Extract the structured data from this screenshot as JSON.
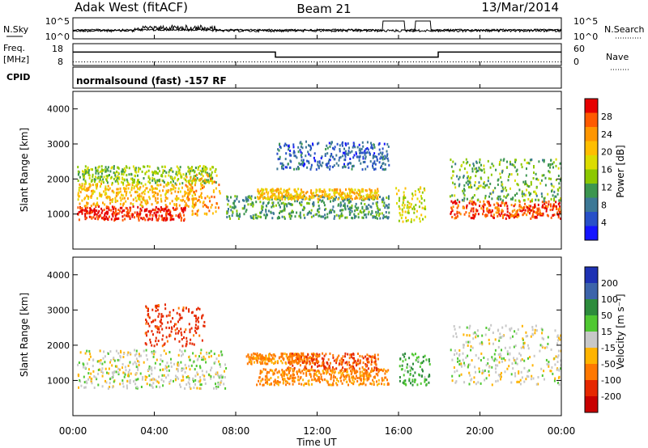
{
  "header": {
    "station": "Adak West (fitACF)",
    "beam": "Beam 21",
    "date": "13/Mar/2014"
  },
  "noise_panel": {
    "left_label": "N.Sky",
    "right_label": "N.Search",
    "ticks_left": [
      "10^5",
      "10^0"
    ],
    "ticks_right": [
      "10^5",
      "10^0"
    ]
  },
  "freq_panel": {
    "left_label_top": "Freq.",
    "left_label_unit": "[MHz]",
    "right_label": "Nave",
    "ticks_left": [
      "18",
      "8"
    ],
    "ticks_right": [
      "60",
      "0"
    ],
    "freq_levels": [
      {
        "start_hour": 0,
        "end_hour": 9.95,
        "value": 13
      },
      {
        "start_hour": 9.95,
        "end_hour": 17.95,
        "value": 10
      },
      {
        "start_hour": 17.95,
        "end_hour": 24,
        "value": 13
      }
    ],
    "nave_level": 10
  },
  "cpid_panel": {
    "label": "CPID",
    "text": "normalsound (fast) -157 RF"
  },
  "power_panel": {
    "ylabel": "Slant Range [km]",
    "yticks": [
      "1000",
      "2000",
      "3000",
      "4000"
    ],
    "colorbar_label": "Power [dB]",
    "colorbar_ticks": [
      "28",
      "24",
      "20",
      "16",
      "12",
      "8",
      "4"
    ],
    "colors": [
      "#e60000",
      "#ff5a00",
      "#ff9600",
      "#ffbe00",
      "#dcdc00",
      "#8cc800",
      "#3c9650",
      "#3c7896",
      "#2850c8",
      "#1414ff"
    ]
  },
  "velocity_panel": {
    "ylabel": "Slant Range [km]",
    "yticks": [
      "1000",
      "2000",
      "3000",
      "4000"
    ],
    "colorbar_label": "Velocity [m s⁻¹]",
    "colorbar_ticks": [
      "200",
      "100",
      "50",
      "15",
      "-15",
      "-50",
      "-100",
      "-200"
    ],
    "colors": [
      "#1e32b4",
      "#3c64aa",
      "#2d8c3c",
      "#50c832",
      "#c8c8c8",
      "#ffb400",
      "#ff7800",
      "#e62800",
      "#c80000"
    ]
  },
  "x_axis": {
    "label": "Time UT",
    "ticks": [
      "00:00",
      "04:00",
      "08:00",
      "12:00",
      "16:00",
      "20:00",
      "00:00"
    ]
  },
  "chart_data": [
    {
      "type": "heatmap",
      "title": "Power",
      "xlabel": "Time UT",
      "ylabel": "Slant Range [km]",
      "xlim_hours": [
        0,
        24
      ],
      "ylim": [
        0,
        4500
      ],
      "colorbar": {
        "label": "Power [dB]",
        "range": [
          0,
          30
        ]
      },
      "regions": [
        {
          "start_hour": 0.2,
          "end_hour": 5.5,
          "range_low": 850,
          "range_high": 1250,
          "power_db": 28
        },
        {
          "start_hour": 0.2,
          "end_hour": 6.0,
          "range_low": 1250,
          "range_high": 1900,
          "power_db": 20
        },
        {
          "start_hour": 0.2,
          "end_hour": 7.0,
          "range_low": 1900,
          "range_high": 2400,
          "power_db": 14
        },
        {
          "start_hour": 5.5,
          "end_hour": 7.2,
          "range_low": 1000,
          "range_high": 2200,
          "power_db": 22
        },
        {
          "start_hour": 7.5,
          "end_hour": 15.5,
          "range_low": 900,
          "range_high": 1550,
          "power_db": 10
        },
        {
          "start_hour": 9.0,
          "end_hour": 15.0,
          "range_low": 1450,
          "range_high": 1750,
          "power_db": 20
        },
        {
          "start_hour": 15.8,
          "end_hour": 17.3,
          "range_low": 800,
          "range_high": 1800,
          "power_db": 16
        },
        {
          "start_hour": 18.5,
          "end_hour": 24.0,
          "range_low": 900,
          "range_high": 1400,
          "power_db": 26
        },
        {
          "start_hour": 18.5,
          "end_hour": 24.0,
          "range_low": 1400,
          "range_high": 2600,
          "power_db": 12
        },
        {
          "start_hour": 10.0,
          "end_hour": 15.5,
          "range_low": 2300,
          "range_high": 3100,
          "power_db": 6
        }
      ]
    },
    {
      "type": "heatmap",
      "title": "Velocity",
      "xlabel": "Time UT",
      "ylabel": "Slant Range [km]",
      "xlim_hours": [
        0,
        24
      ],
      "ylim": [
        0,
        4500
      ],
      "colorbar": {
        "label": "Velocity [m s⁻¹]",
        "range": [
          -250,
          250
        ]
      },
      "regions": [
        {
          "start_hour": 0.2,
          "end_hour": 7.5,
          "range_low": 800,
          "range_high": 1900,
          "velocity": 0
        },
        {
          "start_hour": 3.5,
          "end_hour": 6.5,
          "range_low": 2000,
          "range_high": 3200,
          "velocity": -120
        },
        {
          "start_hour": 8.5,
          "end_hour": 12.0,
          "range_low": 1500,
          "range_high": 1800,
          "velocity": -60
        },
        {
          "start_hour": 10.5,
          "end_hour": 15.0,
          "range_low": 1300,
          "range_high": 1800,
          "velocity": -100
        },
        {
          "start_hour": 9.0,
          "end_hour": 15.5,
          "range_low": 900,
          "range_high": 1350,
          "velocity": -60
        },
        {
          "start_hour": 16.0,
          "end_hour": 17.5,
          "range_low": 900,
          "range_high": 1800,
          "velocity": 40
        },
        {
          "start_hour": 18.5,
          "end_hour": 24.0,
          "range_low": 900,
          "range_high": 2600,
          "velocity": 0
        }
      ]
    }
  ]
}
